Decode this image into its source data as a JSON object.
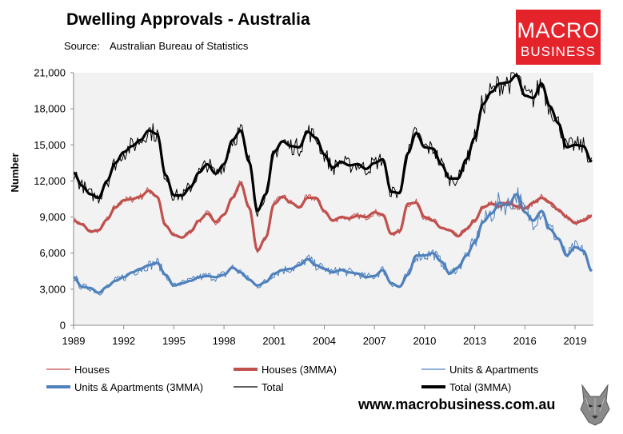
{
  "header": {
    "title": "Dwelling Approvals - Australia",
    "source_label": "Source:",
    "source_value": "Australian Bureau of Statistics"
  },
  "logo": {
    "line1": "MACRO",
    "line2": "BUSINESS",
    "color": "#e5232b"
  },
  "footer": {
    "website": "www.macrobusiness.com.au"
  },
  "colors": {
    "houses": "#c0504d",
    "units": "#4f81bd",
    "total": "#000000",
    "plot_bg": "#f2f2f2"
  },
  "chart_data": {
    "type": "line",
    "title": "Dwelling Approvals - Australia",
    "xlabel": "",
    "ylabel": "Number",
    "xlim": [
      1989,
      2020.1
    ],
    "ylim": [
      0,
      21000
    ],
    "x_ticks": [
      "1989",
      "1992",
      "1995",
      "1998",
      "2001",
      "2004",
      "2007",
      "2010",
      "2013",
      "2016",
      "2019"
    ],
    "y_ticks": [
      "0",
      "3,000",
      "6,000",
      "9,000",
      "12,000",
      "15,000",
      "18,000",
      "21,000"
    ],
    "grid": false,
    "legend": "bottom",
    "legend_entries": [
      "Houses",
      "Houses (3MMA)",
      "Units & Apartments",
      "Units & Apartments (3MMA)",
      "Total",
      "Total (3MMA)"
    ],
    "x": [
      1989.0,
      1989.5,
      1990.0,
      1990.5,
      1991.0,
      1991.5,
      1992.0,
      1992.5,
      1993.0,
      1993.5,
      1994.0,
      1994.5,
      1995.0,
      1995.5,
      1996.0,
      1996.5,
      1997.0,
      1997.5,
      1998.0,
      1998.5,
      1999.0,
      1999.5,
      2000.0,
      2000.5,
      2001.0,
      2001.5,
      2002.0,
      2002.5,
      2003.0,
      2003.5,
      2004.0,
      2004.5,
      2005.0,
      2005.5,
      2006.0,
      2006.5,
      2007.0,
      2007.5,
      2008.0,
      2008.5,
      2009.0,
      2009.5,
      2010.0,
      2010.5,
      2011.0,
      2011.5,
      2012.0,
      2012.5,
      2013.0,
      2013.5,
      2014.0,
      2014.5,
      2015.0,
      2015.5,
      2016.0,
      2016.5,
      2017.0,
      2017.5,
      2018.0,
      2018.5,
      2019.0,
      2019.5,
      2020.0
    ],
    "series": [
      {
        "name": "Houses",
        "style": "thin",
        "values": [
          8700,
          8400,
          7800,
          7900,
          8800,
          9800,
          10400,
          10500,
          10700,
          11200,
          10700,
          8300,
          7500,
          7300,
          7800,
          8700,
          9300,
          8600,
          9200,
          10600,
          11800,
          9800,
          6200,
          7300,
          10100,
          10700,
          10200,
          9800,
          10600,
          10600,
          9500,
          8700,
          9000,
          8900,
          9100,
          9000,
          9400,
          9200,
          7600,
          7800,
          10100,
          10200,
          9000,
          8700,
          8100,
          7900,
          7400,
          8000,
          8700,
          9800,
          10100,
          9900,
          10200,
          9900,
          9700,
          10200,
          10600,
          10200,
          9600,
          9000,
          8500,
          8700,
          9100
        ]
      },
      {
        "name": "Houses (3MMA)",
        "style": "thick",
        "values": [
          8700,
          8400,
          7800,
          7900,
          8800,
          9800,
          10400,
          10500,
          10700,
          11200,
          10700,
          8300,
          7500,
          7300,
          7800,
          8700,
          9300,
          8600,
          9200,
          10600,
          11800,
          9800,
          6200,
          7300,
          10100,
          10700,
          10200,
          9800,
          10600,
          10600,
          9500,
          8700,
          9000,
          8900,
          9100,
          9000,
          9400,
          9200,
          7600,
          7800,
          10100,
          10200,
          9000,
          8700,
          8100,
          7900,
          7400,
          8000,
          8700,
          9800,
          10100,
          9900,
          10200,
          9900,
          9700,
          10200,
          10600,
          10200,
          9600,
          9000,
          8500,
          8700,
          9100
        ]
      },
      {
        "name": "Units & Apartments",
        "style": "thin",
        "values": [
          4000,
          3200,
          3100,
          2700,
          3200,
          3700,
          4000,
          4400,
          4700,
          5000,
          5200,
          4200,
          3300,
          3500,
          3700,
          4000,
          4100,
          4000,
          4200,
          4800,
          4400,
          3800,
          3300,
          3600,
          4300,
          4600,
          4700,
          5000,
          5500,
          5000,
          4700,
          4400,
          4600,
          4400,
          4300,
          4000,
          4100,
          4600,
          3500,
          3200,
          4200,
          5800,
          5800,
          6000,
          5300,
          4300,
          4800,
          5800,
          6900,
          8600,
          9300,
          10200,
          10000,
          10900,
          9400,
          8700,
          9500,
          8000,
          7200,
          5800,
          6500,
          6200,
          4500
        ]
      },
      {
        "name": "Units & Apartments (3MMA)",
        "style": "thick",
        "values": [
          4000,
          3200,
          3100,
          2700,
          3200,
          3700,
          4000,
          4400,
          4700,
          5000,
          5200,
          4200,
          3300,
          3500,
          3700,
          4000,
          4100,
          4000,
          4200,
          4800,
          4400,
          3800,
          3300,
          3600,
          4300,
          4600,
          4700,
          5000,
          5500,
          5000,
          4700,
          4400,
          4600,
          4400,
          4300,
          4000,
          4100,
          4600,
          3500,
          3200,
          4200,
          5800,
          5800,
          6000,
          5300,
          4300,
          4800,
          5800,
          6900,
          8600,
          9300,
          10200,
          10000,
          10900,
          9400,
          8700,
          9500,
          8000,
          7200,
          5800,
          6500,
          6200,
          4500
        ]
      },
      {
        "name": "Total",
        "style": "thin",
        "values": [
          12700,
          11600,
          10900,
          10600,
          12000,
          13500,
          14400,
          14900,
          15400,
          16200,
          15900,
          12500,
          10800,
          10800,
          11500,
          12700,
          13400,
          12600,
          13400,
          15400,
          16200,
          13600,
          9500,
          10900,
          14400,
          15300,
          14900,
          14800,
          16100,
          15600,
          14200,
          13100,
          13600,
          13300,
          13400,
          13000,
          13500,
          13800,
          11100,
          11000,
          14300,
          16000,
          14800,
          14700,
          13400,
          12200,
          12200,
          13800,
          15600,
          18400,
          19400,
          20100,
          20200,
          20800,
          19100,
          18900,
          20100,
          18200,
          16800,
          14800,
          15000,
          14900,
          13600
        ]
      },
      {
        "name": "Total (3MMA)",
        "style": "thick",
        "values": [
          12700,
          11600,
          10900,
          10600,
          12000,
          13500,
          14400,
          14900,
          15400,
          16200,
          15900,
          12500,
          10800,
          10800,
          11500,
          12700,
          13400,
          12600,
          13400,
          15400,
          16200,
          13600,
          9500,
          10900,
          14400,
          15300,
          14900,
          14800,
          16100,
          15600,
          14200,
          13100,
          13600,
          13300,
          13400,
          13000,
          13500,
          13800,
          11100,
          11000,
          14300,
          16000,
          14800,
          14700,
          13400,
          12200,
          12200,
          13800,
          15600,
          18400,
          19400,
          20100,
          20200,
          20800,
          19100,
          18900,
          20100,
          18200,
          16800,
          14800,
          15000,
          14900,
          13600
        ]
      }
    ]
  }
}
